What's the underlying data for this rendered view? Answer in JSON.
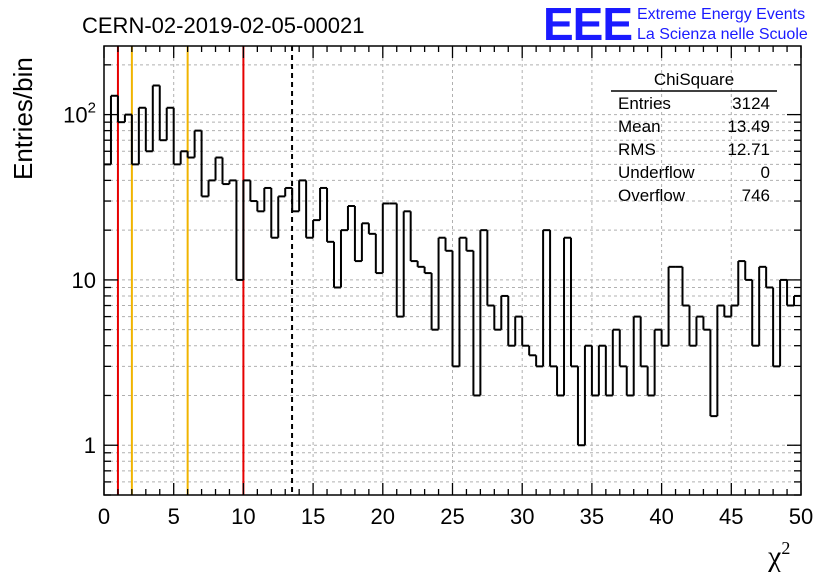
{
  "title": "CERN-02-2019-02-05-00021",
  "logo": {
    "mark": "EEE",
    "line1": "Extreme Energy Events",
    "line2": "La Scienza nelle Scuole"
  },
  "stats": {
    "title": "ChiSquare",
    "rows": [
      {
        "label": "Entries",
        "value": "3124"
      },
      {
        "label": "Mean",
        "value": "13.49"
      },
      {
        "label": "RMS",
        "value": "12.71"
      },
      {
        "label": "Underflow",
        "value": "0"
      },
      {
        "label": "Overflow",
        "value": "746"
      }
    ]
  },
  "chart_data": {
    "type": "histogram",
    "xlabel": "χ",
    "xlabel_superscript": "2",
    "ylabel": "Entries/bin",
    "xlim": [
      0,
      50
    ],
    "ylim": [
      0.5,
      260
    ],
    "yscale": "log",
    "grid": true,
    "bin_width": 0.5,
    "x_ticks": [
      "0",
      "5",
      "10",
      "15",
      "20",
      "25",
      "30",
      "35",
      "40",
      "45",
      "50"
    ],
    "x_tick_values": [
      0,
      5,
      10,
      15,
      20,
      25,
      30,
      35,
      40,
      45,
      50
    ],
    "y_ticks": [
      {
        "value": 1,
        "base": "1",
        "exp": ""
      },
      {
        "value": 10,
        "base": "10",
        "exp": ""
      },
      {
        "value": 100,
        "base": "10",
        "exp": "2"
      }
    ],
    "bin_counts": [
      50,
      130,
      90,
      100,
      50,
      110,
      60,
      150,
      70,
      110,
      50,
      60,
      55,
      80,
      32,
      40,
      55,
      38,
      40,
      10,
      40,
      30,
      26,
      36,
      18,
      32,
      36,
      26,
      40,
      18,
      23,
      36,
      17,
      9,
      20,
      28,
      13,
      22,
      19,
      11,
      29,
      29,
      6,
      26,
      13,
      12,
      11,
      5,
      18,
      15,
      3,
      18,
      15,
      2,
      20,
      7,
      5,
      8,
      4,
      6,
      4,
      3.5,
      3,
      20,
      3,
      2,
      18,
      3,
      1,
      4,
      2,
      4,
      2,
      5,
      3,
      2,
      6,
      3,
      2,
      5,
      4,
      12,
      12,
      7,
      4,
      6,
      5,
      1.5,
      7,
      6,
      7,
      13,
      10,
      4,
      12,
      9,
      3,
      10,
      7,
      8
    ],
    "reference_lines": [
      {
        "x": 1,
        "color": "#e60000",
        "style": "solid"
      },
      {
        "x": 2,
        "color": "#f0b400",
        "style": "solid"
      },
      {
        "x": 6,
        "color": "#f0b400",
        "style": "solid"
      },
      {
        "x": 10,
        "color": "#e60000",
        "style": "solid"
      },
      {
        "x": 13.49,
        "color": "#000000",
        "style": "dashed"
      }
    ]
  }
}
